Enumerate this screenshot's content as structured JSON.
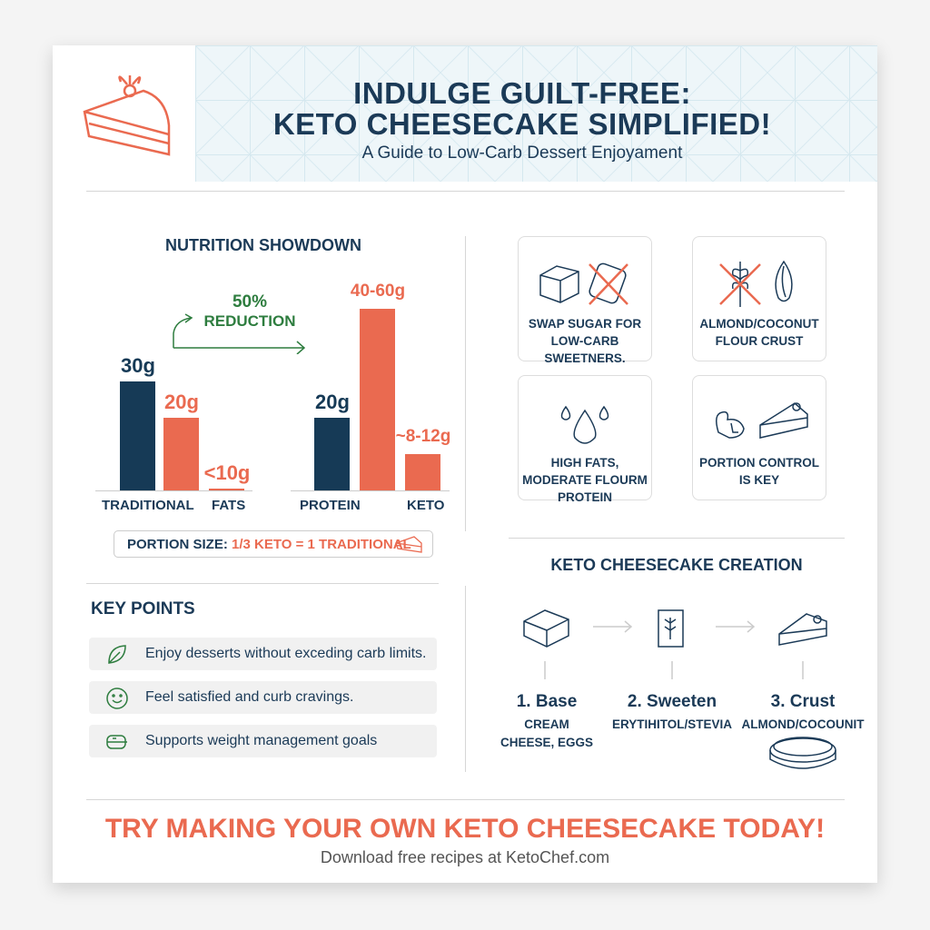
{
  "header": {
    "title_line1": "INDULGE GUILT-FREE:",
    "title_line2": "KETO CHEESECAKE SIMPLIFIED!",
    "subtitle": "A Guide to Low-Carb Dessert Enjoyament"
  },
  "nutrition": {
    "title": "NUTRITION SHOWDOWN",
    "reduction_pct": "50%",
    "reduction_label": "REDUCTION",
    "portion_prefix": "PORTION SIZE:",
    "portion_value": "1/3 KETO = 1 TRADITIONAL"
  },
  "chart_data": {
    "type": "bar",
    "bars": [
      {
        "label": "30g",
        "value": 30,
        "color": "#163a56"
      },
      {
        "label": "20g",
        "value": 20,
        "color": "#ea6a50"
      },
      {
        "label": "<10g",
        "value": 0.5,
        "color": "#ea6a50"
      },
      {
        "label": "20g",
        "value": 20,
        "color": "#163a56"
      },
      {
        "label": "40-60g",
        "value": 50,
        "color": "#ea6a50"
      },
      {
        "label": "~8-12g",
        "value": 10,
        "color": "#ea6a50"
      }
    ],
    "xlabels": [
      "TRADITIONAL",
      "FATS",
      "PROTEIN",
      "KETO"
    ]
  },
  "key_points": {
    "title": "KEY POINTS",
    "items": [
      "Enjoy desserts without exceding carb limits.",
      "Feel satisfied and curb cravings.",
      "Supports weight management goals"
    ]
  },
  "tips": [
    "SWAP SUGAR FOR LOW-CARB SWEETNERS.",
    "ALMOND/COCONUT FLOUR CRUST",
    "HIGH FATS, MODERATE FLOURM PROTEIN",
    "PORTION CONTROL IS KEY"
  ],
  "creation": {
    "title": "KETO CHEESECAKE CREATION",
    "steps": [
      {
        "name": "1. Base",
        "desc": "CREAM CHEESE, EGGS"
      },
      {
        "name": "2. Sweeten",
        "desc": "ERYTIHITOL/STEVIA"
      },
      {
        "name": "3. Crust",
        "desc": "ALMOND/COCOUNIT"
      }
    ]
  },
  "cta": {
    "headline": "TRY MAKING YOUR OWN KETO CHEESECAKE TODAY!",
    "footer": "Download free recipes at KetoChef.com"
  },
  "colors": {
    "navy": "#163a56",
    "coral": "#ea6a50",
    "green": "#2e7d3f"
  }
}
